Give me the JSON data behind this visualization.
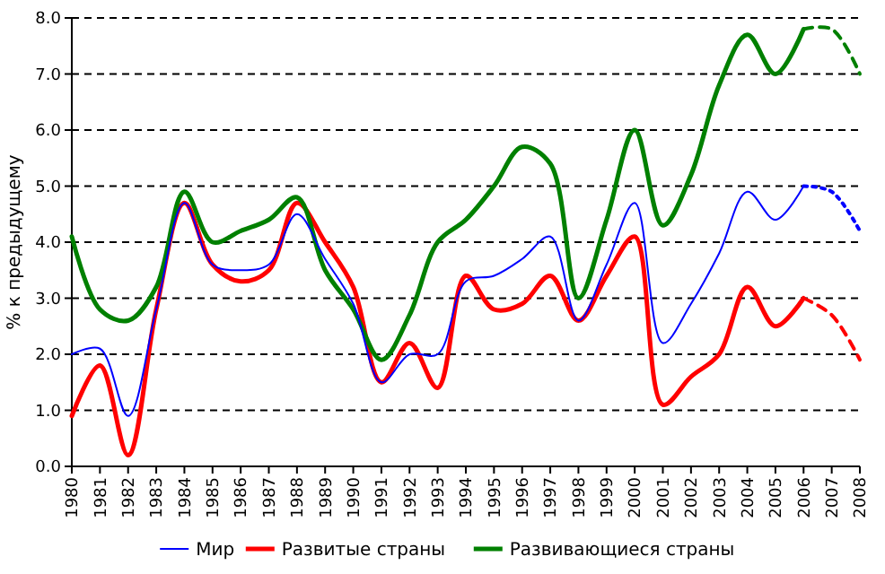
{
  "chart_data": {
    "type": "line",
    "ylabel": "% к предыдущему",
    "categories": [
      "1980",
      "1981",
      "1982",
      "1983",
      "1984",
      "1985",
      "1986",
      "1987",
      "1988",
      "1989",
      "1990",
      "1991",
      "1992",
      "1993",
      "1994",
      "1995",
      "1996",
      "1997",
      "1998",
      "1999",
      "2000",
      "2001",
      "2002",
      "2003",
      "2004",
      "2005",
      "2006",
      "2007",
      "2008"
    ],
    "series": [
      {
        "name": "Мир",
        "color": "#0000ff",
        "values": [
          2.0,
          2.1,
          0.9,
          2.8,
          4.7,
          3.6,
          3.5,
          3.6,
          4.5,
          3.7,
          2.9,
          1.5,
          2.0,
          2.0,
          3.3,
          3.4,
          3.7,
          4.1,
          2.6,
          3.6,
          4.7,
          2.2,
          2.9,
          3.8,
          4.9,
          4.4,
          5.0,
          null,
          null
        ]
      },
      {
        "name": "Развитые страны",
        "color": "#ff0000",
        "values": [
          0.9,
          1.8,
          0.2,
          2.8,
          4.7,
          3.6,
          3.3,
          3.5,
          4.7,
          4.0,
          3.2,
          1.5,
          2.2,
          1.4,
          3.4,
          2.8,
          2.9,
          3.4,
          2.6,
          3.4,
          4.1,
          1.1,
          1.6,
          2.0,
          3.2,
          2.5,
          3.0,
          null,
          null
        ]
      },
      {
        "name": "Развивающиеся страны",
        "color": "#008000",
        "values": [
          4.1,
          2.8,
          2.6,
          3.2,
          4.9,
          4.0,
          4.2,
          4.4,
          4.8,
          3.5,
          2.8,
          1.9,
          2.7,
          4.0,
          4.4,
          5.0,
          5.7,
          5.4,
          3.0,
          4.4,
          6.0,
          4.3,
          5.2,
          6.8,
          7.7,
          7.0,
          7.8,
          null,
          null
        ]
      },
      {
        "color": "#0000ff",
        "line_style": "dotted",
        "values": [
          null,
          null,
          null,
          null,
          null,
          null,
          null,
          null,
          null,
          null,
          null,
          null,
          null,
          null,
          null,
          null,
          null,
          null,
          null,
          null,
          null,
          null,
          null,
          null,
          null,
          null,
          5.0,
          4.9,
          4.2
        ]
      },
      {
        "color": "#ff0000",
        "line_style": "dashed",
        "values": [
          null,
          null,
          null,
          null,
          null,
          null,
          null,
          null,
          null,
          null,
          null,
          null,
          null,
          null,
          null,
          null,
          null,
          null,
          null,
          null,
          null,
          null,
          null,
          null,
          null,
          null,
          3.0,
          2.7,
          1.9
        ]
      },
      {
        "color": "#008000",
        "line_style": "dashed",
        "values": [
          null,
          null,
          null,
          null,
          null,
          null,
          null,
          null,
          null,
          null,
          null,
          null,
          null,
          null,
          null,
          null,
          null,
          null,
          null,
          null,
          null,
          null,
          null,
          null,
          null,
          null,
          7.8,
          7.8,
          7.0
        ]
      }
    ],
    "ylim": [
      0,
      8
    ],
    "yticks": [
      {
        "value": 0,
        "label": "0.0"
      },
      {
        "value": 1,
        "label": "1.0"
      },
      {
        "value": 2,
        "label": "2.0"
      },
      {
        "value": 3,
        "label": "3.0"
      },
      {
        "value": 4,
        "label": "4.0"
      },
      {
        "value": 5,
        "label": "5.0"
      },
      {
        "value": 6,
        "label": "6.0"
      },
      {
        "value": 7,
        "label": "7.0"
      },
      {
        "value": 8,
        "label": "8.0"
      }
    ],
    "grid": "y",
    "legend": "bottom",
    "marker": "none"
  }
}
